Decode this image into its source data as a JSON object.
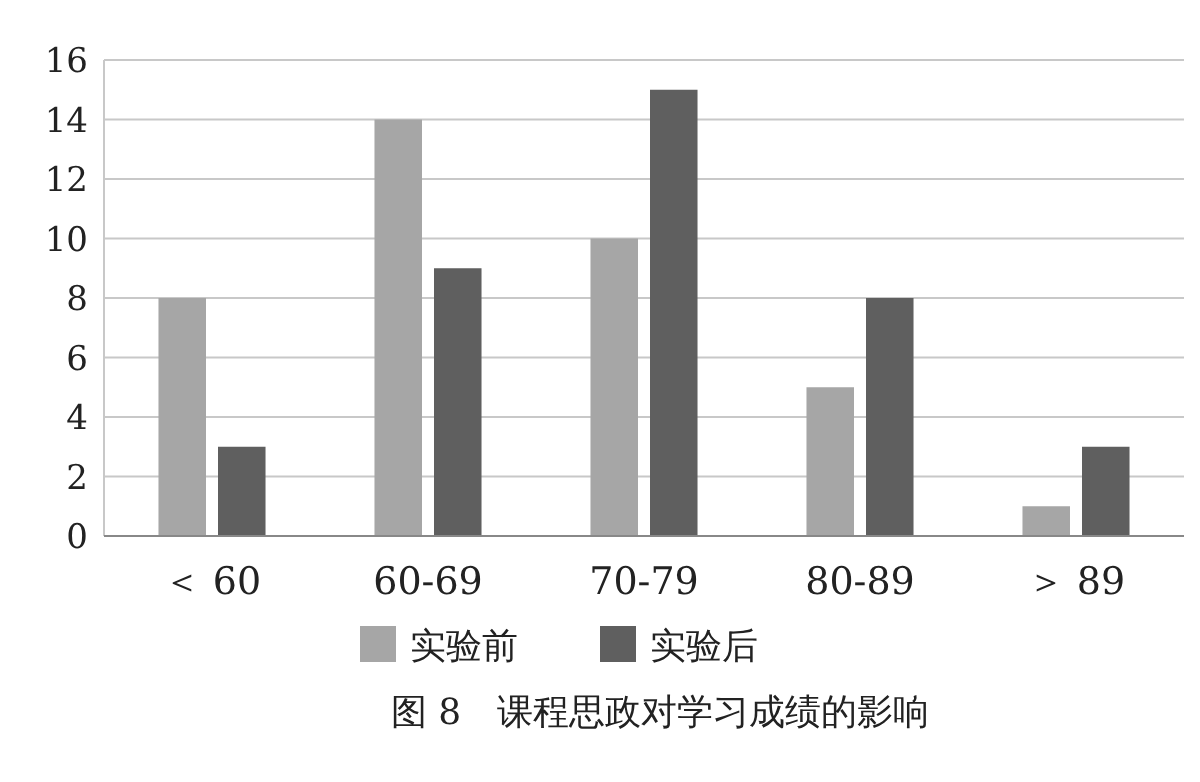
{
  "chart_data": {
    "type": "bar",
    "title": "图 8　课程思政对学习成绩的影响",
    "categories": [
      "＜ 60",
      "60-69",
      "70-79",
      "80-89",
      "＞ 89"
    ],
    "series": [
      {
        "name": "实验前",
        "color": "#a6a6a6",
        "values": [
          8,
          14,
          10,
          5,
          1
        ]
      },
      {
        "name": "实验后",
        "color": "#5f5f5f",
        "values": [
          3,
          9,
          15,
          8,
          3
        ]
      }
    ],
    "ylim": [
      0,
      16
    ],
    "yticks": [
      0,
      2,
      4,
      6,
      8,
      10,
      12,
      14,
      16
    ],
    "grid": "y",
    "legend": "bottom"
  }
}
